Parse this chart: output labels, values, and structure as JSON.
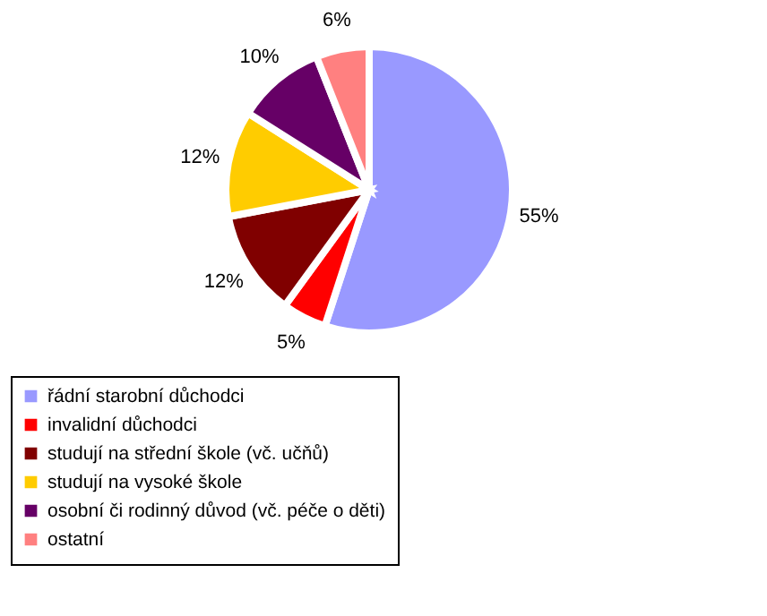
{
  "chart_data": {
    "type": "pie",
    "categories": [
      "řádní starobní důchodci",
      "invalidní důchodci",
      "studují na střední škole (vč. učňů)",
      "studují na vysoké škole",
      "osobní či rodinný důvod (vč. péče o děti)",
      "ostatní"
    ],
    "values": [
      55,
      5,
      12,
      12,
      10,
      6
    ],
    "colors": [
      "#9999ff",
      "#ff0000",
      "#800000",
      "#ffcc00",
      "#660066",
      "#ff8080"
    ],
    "value_labels": [
      "55%",
      "5%",
      "12%",
      "12%",
      "10%",
      "6%"
    ],
    "legend": "bottom"
  }
}
